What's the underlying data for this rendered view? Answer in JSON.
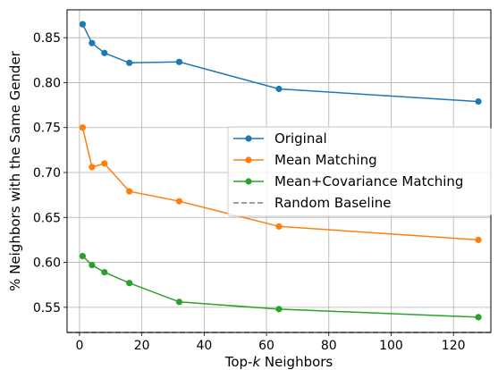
{
  "chart_data": {
    "type": "line",
    "xlabel_parts": [
      "Top-",
      "k",
      " Neighbors"
    ],
    "ylabel": "% Neighbors with the Same Gender",
    "xlim": [
      -4,
      132
    ],
    "ylim": [
      0.522,
      0.881
    ],
    "xticks": [
      0,
      20,
      40,
      60,
      80,
      100,
      120
    ],
    "yticks": [
      0.55,
      0.6,
      0.65,
      0.7,
      0.75,
      0.8,
      0.85
    ],
    "ytick_labels": [
      "0.55",
      "0.60",
      "0.65",
      "0.70",
      "0.75",
      "0.80",
      "0.85"
    ],
    "grid": true,
    "legend_position": "center-right",
    "x": [
      1,
      4,
      8,
      16,
      32,
      64,
      128
    ],
    "series": [
      {
        "name": "Original",
        "color": "#1f77b4",
        "values": [
          0.865,
          0.844,
          0.833,
          0.822,
          0.823,
          0.793,
          0.779
        ]
      },
      {
        "name": "Mean Matching",
        "color": "#ff7f0e",
        "values": [
          0.75,
          0.706,
          0.71,
          0.679,
          0.668,
          0.64,
          0.625
        ]
      },
      {
        "name": "Mean+Covariance Matching",
        "color": "#2ca02c",
        "values": [
          0.607,
          0.597,
          0.589,
          0.577,
          0.556,
          0.548,
          0.539
        ]
      }
    ],
    "baseline": {
      "name": "Random Baseline",
      "value": 0.522,
      "color": "#7f7f7f",
      "style": "dashed"
    }
  }
}
